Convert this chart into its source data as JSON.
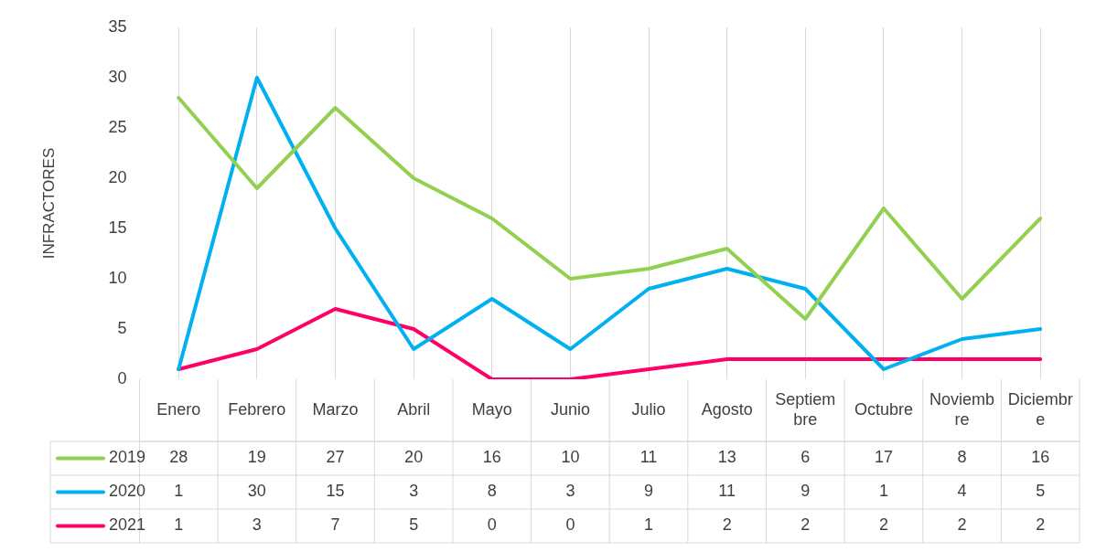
{
  "chart_data": {
    "type": "line",
    "ylabel": "INFRACTORES",
    "categories": [
      "Enero",
      "Febrero",
      "Marzo",
      "Abril",
      "Mayo",
      "Junio",
      "Julio",
      "Agosto",
      "Septiembre",
      "Octubre",
      "Noviembre",
      "Diciembre"
    ],
    "series": [
      {
        "name": "2019",
        "color": "#92d050",
        "values": [
          28,
          19,
          27,
          20,
          16,
          10,
          11,
          13,
          6,
          17,
          8,
          16
        ]
      },
      {
        "name": "2020",
        "color": "#00b0f0",
        "values": [
          1,
          30,
          15,
          3,
          8,
          3,
          9,
          11,
          9,
          1,
          4,
          5
        ]
      },
      {
        "name": "2021",
        "color": "#ff0066",
        "values": [
          1,
          3,
          7,
          5,
          0,
          0,
          1,
          2,
          2,
          2,
          2,
          2
        ]
      }
    ],
    "ylim": [
      0,
      35
    ],
    "yticks": [
      0,
      5,
      10,
      15,
      20,
      25,
      30,
      35
    ],
    "grid": "x",
    "legend": "bottom",
    "data_labels": true,
    "marker": "none",
    "line_style": "solid"
  }
}
